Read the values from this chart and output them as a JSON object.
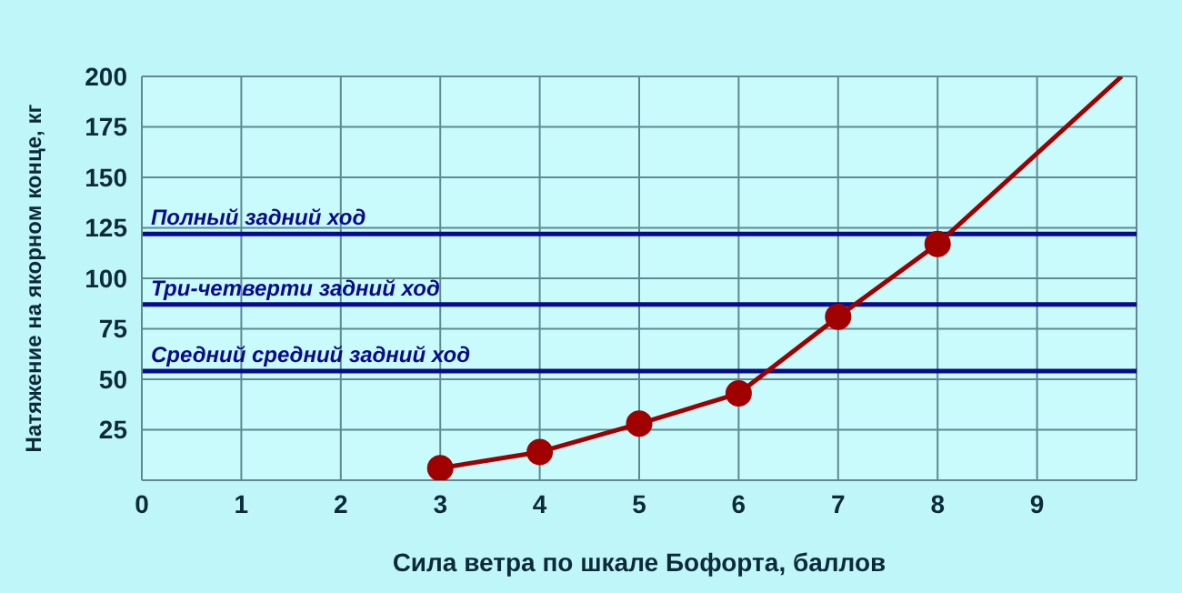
{
  "chart_data": {
    "type": "line",
    "xlabel": "Сила ветра по шкале Бофорта, баллов",
    "ylabel": "Натяжение на якорном конце, кг",
    "xlim": [
      0,
      10
    ],
    "xticks": [
      0,
      1,
      2,
      3,
      4,
      5,
      6,
      7,
      8,
      9
    ],
    "ylim": [
      0,
      200
    ],
    "yticks": [
      25,
      50,
      75,
      100,
      125,
      150,
      175,
      200
    ],
    "grid": true,
    "series": [
      {
        "color": "#a00000",
        "x": [
          3,
          4,
          5,
          6,
          7,
          8
        ],
        "values": [
          6,
          14,
          28,
          43,
          81,
          117
        ],
        "marker": "circle"
      },
      {
        "color": "#a00000",
        "x": [
          8,
          9.85
        ],
        "values": [
          117,
          200
        ],
        "marker": "none"
      }
    ],
    "ref_lines": [
      {
        "axis": "y",
        "value": 122,
        "label": "Полный задний ход",
        "color": "#0a0a8c"
      },
      {
        "axis": "y",
        "value": 87,
        "label": "Три-четверти задний ход",
        "color": "#0a0a8c"
      },
      {
        "axis": "y",
        "value": 54,
        "label": "Средний средний задний ход",
        "color": "#0a0a8c"
      }
    ]
  }
}
